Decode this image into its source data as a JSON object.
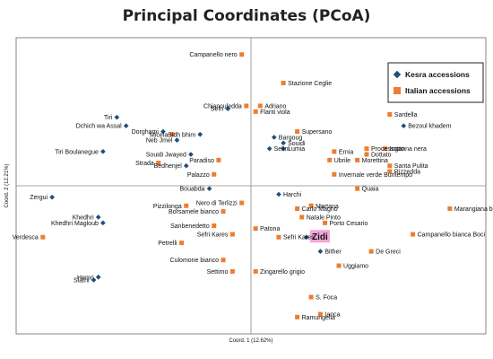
{
  "chart_data": {
    "type": "scatter",
    "title": "Principal Coordinates (PCoA)",
    "xlabel": "Coord. 1 (12.62%)",
    "ylabel": "Coord. 2 (12.21%)",
    "xlim": [
      -0.5,
      0.5
    ],
    "ylim": [
      -0.5,
      0.5
    ],
    "grid": false,
    "legend_position": "top-right",
    "colors": {
      "kesra": "#1f4e79",
      "italian": "#ed7d31",
      "highlight": "#f4a6d7"
    },
    "series": [
      {
        "name": "Kesra accessions",
        "marker": "diamond",
        "points": [
          {
            "label": "Tiri",
            "x": -0.29,
            "y": 0.24
          },
          {
            "label": "Dchich wa Assal",
            "x": -0.27,
            "y": 0.21
          },
          {
            "label": "Tiri Boulanegue",
            "x": -0.32,
            "y": 0.12
          },
          {
            "label": "Dorghami",
            "x": -0.19,
            "y": 0.19
          },
          {
            "label": "Neb Jmel",
            "x": -0.16,
            "y": 0.16
          },
          {
            "label": "Bidh bhim",
            "x": -0.11,
            "y": 0.18
          },
          {
            "label": "Souidi Jwayed",
            "x": -0.13,
            "y": 0.11
          },
          {
            "label": "Bedhenjel",
            "x": -0.14,
            "y": 0.07
          },
          {
            "label": "Sefri",
            "x": -0.05,
            "y": 0.27
          },
          {
            "label": "Bargoug",
            "x": 0.05,
            "y": 0.17
          },
          {
            "label": "Souidi",
            "x": 0.07,
            "y": 0.15
          },
          {
            "label": "Lumia",
            "x": 0.07,
            "y": 0.13
          },
          {
            "label": "Sekni",
            "x": 0.04,
            "y": 0.13
          },
          {
            "label": "Bezoul khadem",
            "x": 0.33,
            "y": 0.21
          },
          {
            "label": "Bouabda",
            "x": -0.09,
            "y": -0.01
          },
          {
            "label": "Zergui",
            "x": -0.43,
            "y": -0.04
          },
          {
            "label": "Khedhri",
            "x": -0.33,
            "y": -0.11
          },
          {
            "label": "Khedhri Magloub",
            "x": -0.32,
            "y": -0.13
          },
          {
            "label": "Hemri",
            "x": -0.33,
            "y": -0.32
          },
          {
            "label": "Slatni",
            "x": -0.34,
            "y": -0.33
          },
          {
            "label": "Harchi",
            "x": 0.06,
            "y": -0.03
          },
          {
            "label": "Bither",
            "x": 0.15,
            "y": -0.23
          },
          {
            "label": "Zidi",
            "x": 0.12,
            "y": -0.18,
            "highlight": true
          }
        ]
      },
      {
        "name": "Italian accessions",
        "marker": "square",
        "points": [
          {
            "label": "Campanello nero",
            "x": -0.02,
            "y": 0.46
          },
          {
            "label": "Stazione Ceglie",
            "x": 0.07,
            "y": 0.36
          },
          {
            "label": "Chianculedda",
            "x": -0.01,
            "y": 0.28
          },
          {
            "label": "Adriano",
            "x": 0.02,
            "y": 0.28
          },
          {
            "label": "Flanti viola",
            "x": 0.01,
            "y": 0.26
          },
          {
            "label": "Supersano",
            "x": 0.1,
            "y": 0.19
          },
          {
            "label": "Micela",
            "x": -0.17,
            "y": 0.18
          },
          {
            "label": "Strada",
            "x": -0.2,
            "y": 0.08
          },
          {
            "label": "Paradiso",
            "x": -0.07,
            "y": 0.09
          },
          {
            "label": "Palazzo",
            "x": -0.08,
            "y": 0.04
          },
          {
            "label": "Sardella",
            "x": 0.3,
            "y": 0.25
          },
          {
            "label": "Processotto",
            "x": 0.25,
            "y": 0.13
          },
          {
            "label": "Inganna nera",
            "x": 0.29,
            "y": 0.13
          },
          {
            "label": "Ernia",
            "x": 0.18,
            "y": 0.12
          },
          {
            "label": "Dottato",
            "x": 0.25,
            "y": 0.11
          },
          {
            "label": "Morettina",
            "x": 0.23,
            "y": 0.09
          },
          {
            "label": "Santa Pulita",
            "x": 0.3,
            "y": 0.07
          },
          {
            "label": "Rizzedda",
            "x": 0.3,
            "y": 0.05
          },
          {
            "label": "Ubrile",
            "x": 0.17,
            "y": 0.09
          },
          {
            "label": "Invernale verde Buntempo",
            "x": 0.18,
            "y": 0.04
          },
          {
            "label": "Quaia",
            "x": 0.23,
            "y": -0.01
          },
          {
            "label": "Marangiana bianca",
            "x": 0.43,
            "y": -0.08
          },
          {
            "label": "Campanello bianca Boci",
            "x": 0.35,
            "y": -0.17
          },
          {
            "label": "Pizzilonga",
            "x": -0.14,
            "y": -0.07
          },
          {
            "label": "Nero di Terlizzi",
            "x": -0.02,
            "y": -0.06
          },
          {
            "label": "Borsamele bianco",
            "x": -0.06,
            "y": -0.09
          },
          {
            "label": "Sanbenedetto",
            "x": -0.08,
            "y": -0.14
          },
          {
            "label": "Sefri Kares",
            "x": -0.04,
            "y": -0.17
          },
          {
            "label": "Patona",
            "x": 0.01,
            "y": -0.15
          },
          {
            "label": "Petrelli",
            "x": -0.15,
            "y": -0.2
          },
          {
            "label": "Culomone bianco",
            "x": -0.06,
            "y": -0.26
          },
          {
            "label": "Settimo",
            "x": -0.04,
            "y": -0.3
          },
          {
            "label": "Verdesca",
            "x": -0.45,
            "y": -0.18
          },
          {
            "label": "Martana",
            "x": 0.13,
            "y": -0.07
          },
          {
            "label": "Carlo Magno",
            "x": 0.1,
            "y": -0.08
          },
          {
            "label": "Natale Pinto",
            "x": 0.11,
            "y": -0.11
          },
          {
            "label": "Porto Cesario",
            "x": 0.16,
            "y": -0.13
          },
          {
            "label": "Uggiamo",
            "x": 0.19,
            "y": -0.28
          },
          {
            "label": "De Greci",
            "x": 0.26,
            "y": -0.23
          },
          {
            "label": "Zingarello grigio",
            "x": 0.01,
            "y": -0.3
          },
          {
            "label": "S. Foca",
            "x": 0.13,
            "y": -0.39
          },
          {
            "label": "Ianca",
            "x": 0.15,
            "y": -0.45
          },
          {
            "label": "Ramungella",
            "x": 0.1,
            "y": -0.46
          },
          {
            "label": "Sefri Kares 2",
            "x": 0.06,
            "y": -0.18
          }
        ]
      }
    ]
  }
}
